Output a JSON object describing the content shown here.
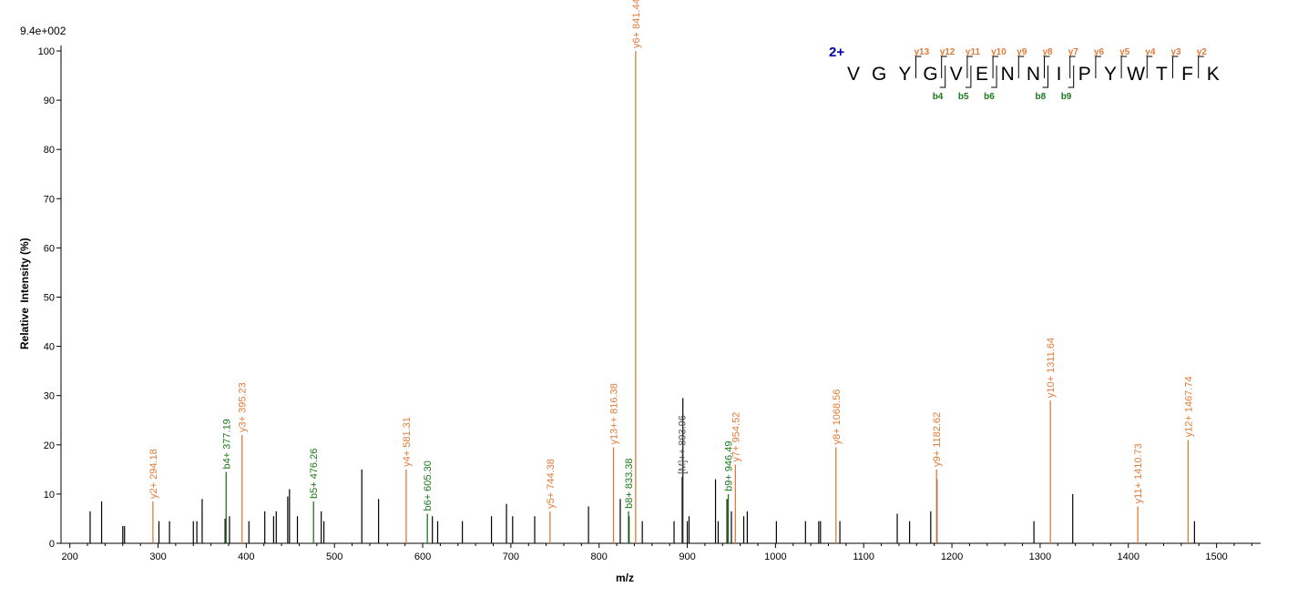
{
  "chart_data": {
    "type": "bar",
    "scale_label": "9.4e+002",
    "xlabel": "m/z",
    "ylabel_parts": [
      "Relative",
      "Intensity (%)"
    ],
    "xlim": [
      190,
      1550
    ],
    "ylim": [
      0,
      100
    ],
    "xticks": [
      200,
      300,
      400,
      500,
      600,
      700,
      800,
      900,
      1000,
      1100,
      1200,
      1300,
      1400,
      1500
    ],
    "yticks": [
      0,
      10,
      20,
      30,
      40,
      50,
      60,
      70,
      80,
      90,
      100
    ],
    "colors": {
      "y_ion": "#e07b39",
      "b_ion": "#1a7a1a",
      "precursor": "#555555",
      "unassigned": "#000000",
      "charge": "#0000aa"
    },
    "labeled_peaks": [
      {
        "mz": 294.18,
        "intensity": 8.5,
        "label": "y2+ 294.18",
        "type": "y"
      },
      {
        "mz": 377.19,
        "intensity": 14.5,
        "label": "b4+ 377.19",
        "type": "b"
      },
      {
        "mz": 395.23,
        "intensity": 22,
        "label": "y3+ 395.23",
        "type": "y"
      },
      {
        "mz": 476.26,
        "intensity": 8.5,
        "label": "b5+ 476.26",
        "type": "b"
      },
      {
        "mz": 581.31,
        "intensity": 15,
        "label": "y4+ 581.31",
        "type": "y"
      },
      {
        "mz": 605.3,
        "intensity": 6,
        "label": "b6+ 605.30",
        "type": "b"
      },
      {
        "mz": 744.38,
        "intensity": 6.5,
        "label": "y5+ 744.38",
        "type": "y"
      },
      {
        "mz": 816.38,
        "intensity": 19.5,
        "label": "y13++ 816.38",
        "type": "y"
      },
      {
        "mz": 833.38,
        "intensity": 6.5,
        "label": "b8+ 833.38",
        "type": "b"
      },
      {
        "mz": 841.44,
        "intensity": 100,
        "label": "y6+ 841.44",
        "type": "y"
      },
      {
        "mz": 893.96,
        "intensity": 13.5,
        "label": "[M]++ 893.96",
        "type": "precursor"
      },
      {
        "mz": 946.49,
        "intensity": 10,
        "label": "b9+ 946.49",
        "type": "b"
      },
      {
        "mz": 954.52,
        "intensity": 16,
        "label": "y7+ 954.52",
        "type": "y"
      },
      {
        "mz": 1068.56,
        "intensity": 19.5,
        "label": "y8+ 1068.56",
        "type": "y"
      },
      {
        "mz": 1182.62,
        "intensity": 15,
        "label": "y9+ 1182.62",
        "type": "y"
      },
      {
        "mz": 1311.64,
        "intensity": 29,
        "label": "y10+ 1311.64",
        "type": "y"
      },
      {
        "mz": 1410.73,
        "intensity": 7.5,
        "label": "y11+ 1410.73",
        "type": "y"
      },
      {
        "mz": 1467.74,
        "intensity": 21,
        "label": "y12+ 1467.74",
        "type": "y"
      }
    ],
    "unlabeled_peaks": [
      {
        "mz": 223,
        "intensity": 6.5
      },
      {
        "mz": 236,
        "intensity": 8.5
      },
      {
        "mz": 260,
        "intensity": 3.5
      },
      {
        "mz": 262,
        "intensity": 3.5
      },
      {
        "mz": 301,
        "intensity": 4.5
      },
      {
        "mz": 313,
        "intensity": 4.5
      },
      {
        "mz": 340,
        "intensity": 4.5
      },
      {
        "mz": 344,
        "intensity": 4.5
      },
      {
        "mz": 350,
        "intensity": 9
      },
      {
        "mz": 376,
        "intensity": 5
      },
      {
        "mz": 381,
        "intensity": 5.5
      },
      {
        "mz": 403,
        "intensity": 4.5
      },
      {
        "mz": 421,
        "intensity": 6.5
      },
      {
        "mz": 431,
        "intensity": 5.5
      },
      {
        "mz": 434,
        "intensity": 6.5
      },
      {
        "mz": 447,
        "intensity": 9.5
      },
      {
        "mz": 449,
        "intensity": 11
      },
      {
        "mz": 458,
        "intensity": 5.5
      },
      {
        "mz": 485,
        "intensity": 6.5
      },
      {
        "mz": 488,
        "intensity": 4.5
      },
      {
        "mz": 531,
        "intensity": 15
      },
      {
        "mz": 550,
        "intensity": 9
      },
      {
        "mz": 611,
        "intensity": 5.5
      },
      {
        "mz": 617,
        "intensity": 4.5
      },
      {
        "mz": 645,
        "intensity": 4.5
      },
      {
        "mz": 678,
        "intensity": 5.5
      },
      {
        "mz": 695,
        "intensity": 8
      },
      {
        "mz": 702,
        "intensity": 5.5
      },
      {
        "mz": 727,
        "intensity": 5.5
      },
      {
        "mz": 788,
        "intensity": 7.5
      },
      {
        "mz": 824,
        "intensity": 9
      },
      {
        "mz": 834,
        "intensity": 5.5
      },
      {
        "mz": 849,
        "intensity": 4.5
      },
      {
        "mz": 885,
        "intensity": 4.5
      },
      {
        "mz": 895,
        "intensity": 29.5
      },
      {
        "mz": 900,
        "intensity": 4.5
      },
      {
        "mz": 902,
        "intensity": 5.5
      },
      {
        "mz": 932,
        "intensity": 13
      },
      {
        "mz": 935,
        "intensity": 4.5
      },
      {
        "mz": 945,
        "intensity": 9
      },
      {
        "mz": 950,
        "intensity": 6.5
      },
      {
        "mz": 964,
        "intensity": 5.5
      },
      {
        "mz": 968,
        "intensity": 6.5
      },
      {
        "mz": 1001,
        "intensity": 4.5
      },
      {
        "mz": 1034,
        "intensity": 4.5
      },
      {
        "mz": 1049,
        "intensity": 4.5
      },
      {
        "mz": 1051,
        "intensity": 4.5
      },
      {
        "mz": 1073,
        "intensity": 4.5
      },
      {
        "mz": 1138,
        "intensity": 6
      },
      {
        "mz": 1152,
        "intensity": 4.5
      },
      {
        "mz": 1176,
        "intensity": 6.5
      },
      {
        "mz": 1183,
        "intensity": 13
      },
      {
        "mz": 1293,
        "intensity": 4.5
      },
      {
        "mz": 1337,
        "intensity": 10
      },
      {
        "mz": 1475,
        "intensity": 4.5
      }
    ]
  },
  "sequence": {
    "charge": "2+",
    "residues": [
      "V",
      "G",
      "Y",
      "G",
      "V",
      "E",
      "N",
      "N",
      "I",
      "P",
      "Y",
      "W",
      "T",
      "F",
      "K"
    ],
    "y_ions": [
      {
        "label": "y13",
        "after": 2
      },
      {
        "label": "y12",
        "after": 3
      },
      {
        "label": "y11",
        "after": 4
      },
      {
        "label": "y10",
        "after": 5
      },
      {
        "label": "y9",
        "after": 6
      },
      {
        "label": "y8",
        "after": 7
      },
      {
        "label": "y7",
        "after": 8
      },
      {
        "label": "y6",
        "after": 9
      },
      {
        "label": "y5",
        "after": 10
      },
      {
        "label": "y4",
        "after": 11
      },
      {
        "label": "y3",
        "after": 12
      },
      {
        "label": "y2",
        "after": 13
      }
    ],
    "b_ions": [
      {
        "label": "b4",
        "after": 4
      },
      {
        "label": "b5",
        "after": 5
      },
      {
        "label": "b6",
        "after": 6
      },
      {
        "label": "b8",
        "after": 8
      },
      {
        "label": "b9",
        "after": 9
      }
    ]
  }
}
